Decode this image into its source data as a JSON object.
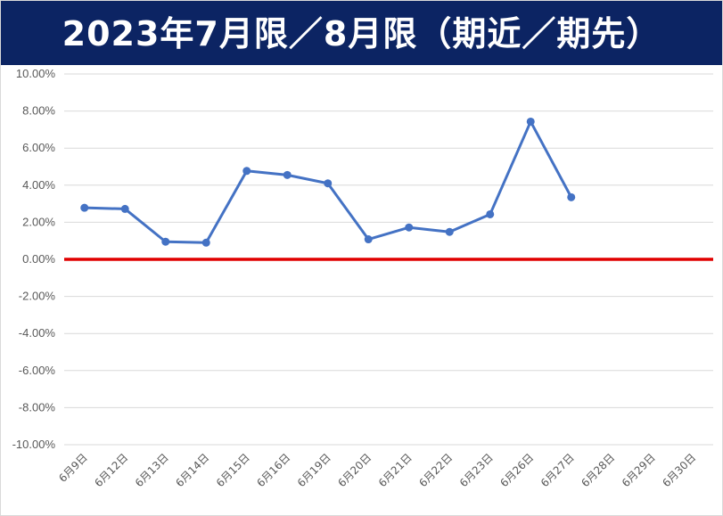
{
  "chart_data": {
    "type": "line",
    "title": "2023年7月限／8月限（期近／期先）",
    "categories": [
      "6月9日",
      "6月12日",
      "6月13日",
      "6月14日",
      "6月15日",
      "6月16日",
      "6月19日",
      "6月20日",
      "6月21日",
      "6月22日",
      "6月23日",
      "6月26日",
      "6月27日",
      "6月28日",
      "6月29日",
      "6月30日"
    ],
    "series": [
      {
        "values": [
          2.78,
          2.72,
          0.95,
          0.9,
          4.77,
          4.55,
          4.1,
          1.08,
          1.72,
          1.48,
          2.43,
          7.43,
          3.35,
          null,
          null,
          null
        ]
      }
    ],
    "ylim": [
      -10,
      10
    ],
    "y_ticks": [
      "10.00%",
      "8.00%",
      "6.00%",
      "4.00%",
      "2.00%",
      "0.00%",
      "-2.00%",
      "-4.00%",
      "-6.00%",
      "-8.00%",
      "-10.00%"
    ],
    "y_tick_values": [
      10,
      8,
      6,
      4,
      2,
      0,
      -2,
      -4,
      -6,
      -8,
      -10
    ],
    "reference_line": {
      "value": 0,
      "color": "#e00000"
    },
    "grid": true,
    "line_color": "#4472c4",
    "title_background": "#0c2463"
  }
}
